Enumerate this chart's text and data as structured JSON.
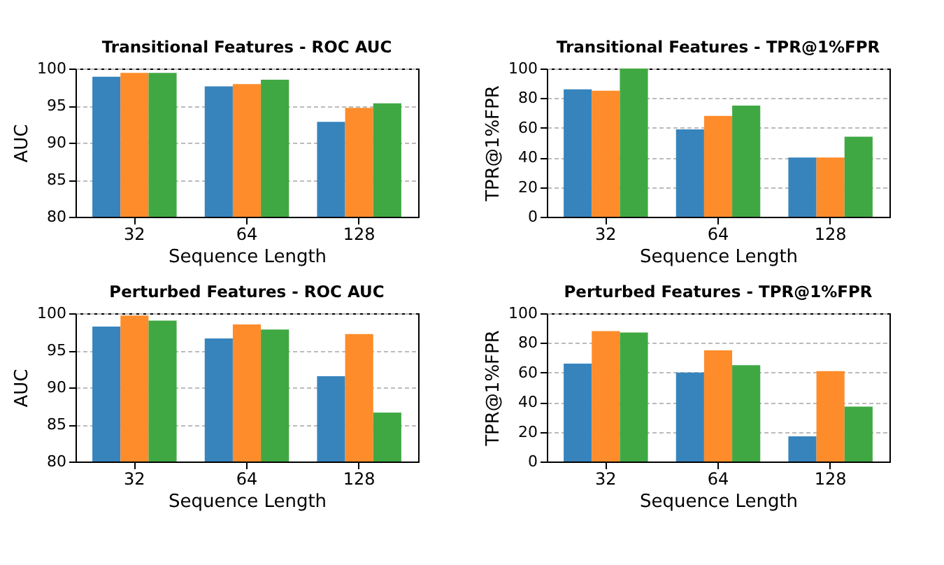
{
  "chart_data": [
    {
      "type": "bar",
      "title": "Transitional Features - ROC AUC",
      "xlabel": "Sequence Length",
      "ylabel": "AUC",
      "categories": [
        "32",
        "64",
        "128"
      ],
      "ylim": [
        80,
        100
      ],
      "yticks": [
        80,
        85,
        90,
        95,
        100
      ],
      "grid": "y",
      "legend": false,
      "series": [
        {
          "color": "#3784bd",
          "values": [
            98.9,
            97.6,
            92.8
          ]
        },
        {
          "color": "#ff8c2a",
          "values": [
            99.4,
            97.9,
            94.7
          ]
        },
        {
          "color": "#40a843",
          "values": [
            99.4,
            98.5,
            95.3
          ]
        }
      ]
    },
    {
      "type": "bar",
      "title": "Transitional Features - TPR@1%FPR",
      "xlabel": "Sequence Length",
      "ylabel": "TPR@1%FPR",
      "categories": [
        "32",
        "64",
        "128"
      ],
      "ylim": [
        0,
        100
      ],
      "yticks": [
        0,
        20,
        40,
        60,
        80,
        100
      ],
      "grid": "y",
      "legend": false,
      "series": [
        {
          "color": "#3784bd",
          "values": [
            86,
            59,
            40
          ]
        },
        {
          "color": "#ff8c2a",
          "values": [
            85,
            68,
            40
          ]
        },
        {
          "color": "#40a843",
          "values": [
            100,
            75,
            54
          ]
        }
      ]
    },
    {
      "type": "bar",
      "title": "Perturbed Features - ROC AUC",
      "xlabel": "Sequence Length",
      "ylabel": "AUC",
      "categories": [
        "32",
        "64",
        "128"
      ],
      "ylim": [
        80,
        100
      ],
      "yticks": [
        80,
        85,
        90,
        95,
        100
      ],
      "grid": "y",
      "legend": false,
      "series": [
        {
          "color": "#3784bd",
          "values": [
            98.2,
            96.6,
            91.5
          ]
        },
        {
          "color": "#ff8c2a",
          "values": [
            99.7,
            98.5,
            97.2
          ]
        },
        {
          "color": "#40a843",
          "values": [
            99.0,
            97.8,
            86.6
          ]
        }
      ]
    },
    {
      "type": "bar",
      "title": "Perturbed Features - TPR@1%FPR",
      "xlabel": "Sequence Length",
      "ylabel": "TPR@1%FPR",
      "categories": [
        "32",
        "64",
        "128"
      ],
      "ylim": [
        0,
        100
      ],
      "yticks": [
        0,
        20,
        40,
        60,
        80,
        100
      ],
      "grid": "y",
      "legend": false,
      "series": [
        {
          "color": "#3784bd",
          "values": [
            66,
            60,
            17
          ]
        },
        {
          "color": "#ff8c2a",
          "values": [
            88,
            75,
            61
          ]
        },
        {
          "color": "#40a843",
          "values": [
            87,
            65,
            37
          ]
        }
      ]
    }
  ]
}
